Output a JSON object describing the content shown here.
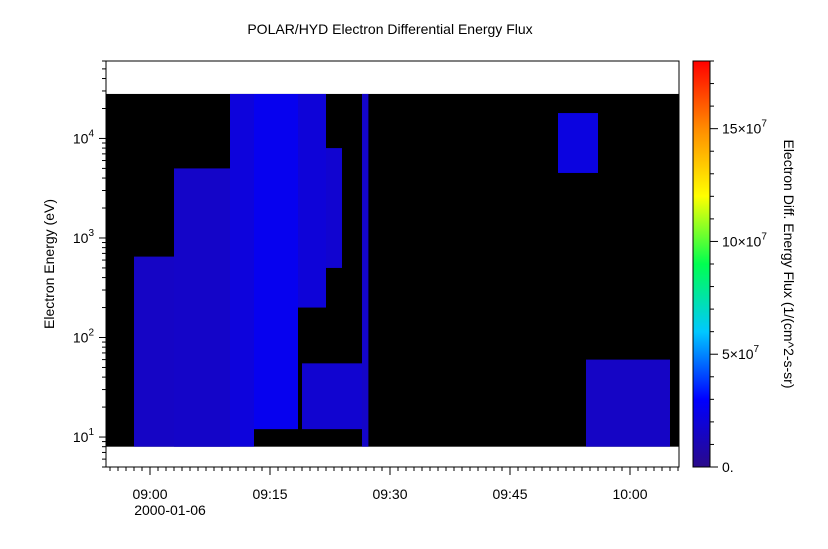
{
  "chart_data": {
    "type": "heatmap",
    "title": "POLAR/HYD  Electron Differential Energy Flux",
    "xlabel": "",
    "ylabel": "Electron Energy (eV)",
    "x_axis": {
      "type": "time",
      "range": [
        "2000-01-06T08:54:00",
        "2000-01-06T10:06:30"
      ],
      "ticks": [
        "09:00",
        "09:15",
        "09:30",
        "09:45",
        "10:00"
      ],
      "tick_minutes": [
        0,
        15,
        30,
        45,
        60
      ],
      "date_label": "2000-01-06"
    },
    "y_axis": {
      "type": "log",
      "range": [
        5,
        60000
      ],
      "ticks": [
        10,
        100,
        1000,
        10000
      ],
      "tick_labels": [
        {
          "base": "10",
          "exp": "1"
        },
        {
          "base": "10",
          "exp": "2"
        },
        {
          "base": "10",
          "exp": "3"
        },
        {
          "base": "10",
          "exp": "4"
        }
      ]
    },
    "colorbar": {
      "label": "Electron Diff. Energy Flux (1/(cm^2-s-sr)",
      "range": [
        0,
        180000000
      ],
      "ticks": [
        {
          "value": 0,
          "label": "0."
        },
        {
          "value": 50000000,
          "label": "5×10",
          "exp": "7"
        },
        {
          "value": 100000000,
          "label": "10×10",
          "exp": "7"
        },
        {
          "value": 150000000,
          "label": "15×10",
          "exp": "7"
        }
      ],
      "colors": [
        "#2a0a8a",
        "#0000ff",
        "#00c8ff",
        "#00ff50",
        "#ffff00",
        "#ff8c00",
        "#ff0000"
      ]
    },
    "data_extent": {
      "energy_min": 8,
      "energy_max": 28000
    },
    "background_color": "#000000",
    "grid": false,
    "flux_regions": [
      {
        "t0": -2.0,
        "t1": 10.0,
        "e_lo": 8,
        "e_hi": 650,
        "flux": 15000000
      },
      {
        "t0": 3.0,
        "t1": 10.0,
        "e_lo": 8,
        "e_hi": 5000,
        "flux": 16000000
      },
      {
        "t0": 10.0,
        "t1": 13.0,
        "e_lo": 8,
        "e_hi": 30000,
        "flux": 21000000
      },
      {
        "t0": 13.0,
        "t1": 18.5,
        "e_lo": 12,
        "e_hi": 30000,
        "flux": 26000000
      },
      {
        "t0": 18.5,
        "t1": 22.0,
        "e_lo": 200,
        "e_hi": 30000,
        "flux": 20000000
      },
      {
        "t0": 22.0,
        "t1": 24.0,
        "e_lo": 500,
        "e_hi": 8000,
        "flux": 18000000
      },
      {
        "t0": 19.0,
        "t1": 27.0,
        "e_lo": 12,
        "e_hi": 55,
        "flux": 18000000
      },
      {
        "t0": 26.5,
        "t1": 27.3,
        "e_lo": 8,
        "e_hi": 30000,
        "flux": 16000000
      },
      {
        "t0": 51.0,
        "t1": 56.0,
        "e_lo": 4500,
        "e_hi": 18000,
        "flux": 22000000
      },
      {
        "t0": 54.5,
        "t1": 65.0,
        "e_lo": 8,
        "e_hi": 60,
        "flux": 15000000
      }
    ]
  }
}
